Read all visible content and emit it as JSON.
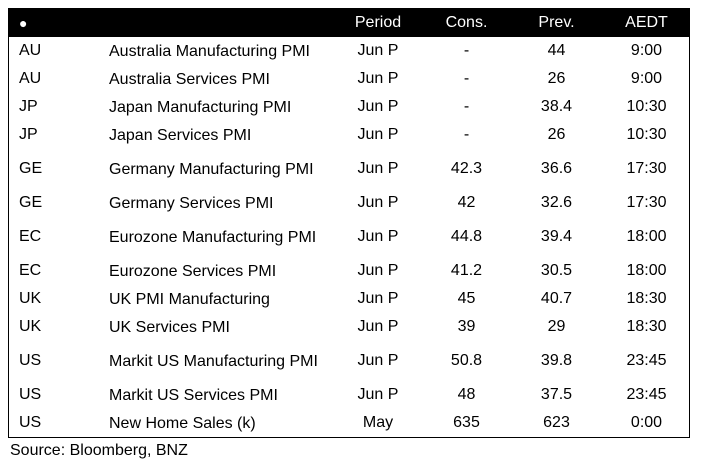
{
  "table": {
    "header_bullet": "●",
    "columns": {
      "period": "Period",
      "cons": "Cons.",
      "prev": "Prev.",
      "aedt": "AEDT"
    },
    "rows": [
      {
        "country": "AU",
        "event": "Australia Manufacturing PMI",
        "period": "Jun P",
        "cons": "-",
        "prev": "44",
        "aedt": "9:00"
      },
      {
        "country": "AU",
        "event": "Australia Services PMI",
        "period": "Jun P",
        "cons": "-",
        "prev": "26",
        "aedt": "9:00"
      },
      {
        "country": "JP",
        "event": "Japan Manufacturing PMI",
        "period": "Jun P",
        "cons": "-",
        "prev": "38.4",
        "aedt": "10:30"
      },
      {
        "country": "JP",
        "event": "Japan Services PMI",
        "period": "Jun P",
        "cons": "-",
        "prev": "26",
        "aedt": "10:30"
      },
      {
        "country": "GE",
        "event": "Germany Manufacturing PMI",
        "period": "Jun P",
        "cons": "42.3",
        "prev": "36.6",
        "aedt": "17:30"
      },
      {
        "country": "GE",
        "event": "Germany Services PMI",
        "period": "Jun P",
        "cons": "42",
        "prev": "32.6",
        "aedt": "17:30"
      },
      {
        "country": "EC",
        "event": "Eurozone Manufacturing PMI",
        "period": "Jun P",
        "cons": "44.8",
        "prev": "39.4",
        "aedt": "18:00"
      },
      {
        "country": "EC",
        "event": "Eurozone Services PMI",
        "period": "Jun P",
        "cons": "41.2",
        "prev": "30.5",
        "aedt": "18:00"
      },
      {
        "country": "UK",
        "event": "UK PMI Manufacturing",
        "period": "Jun P",
        "cons": "45",
        "prev": "40.7",
        "aedt": "18:30"
      },
      {
        "country": "UK",
        "event": "UK Services PMI",
        "period": "Jun P",
        "cons": "39",
        "prev": "29",
        "aedt": "18:30"
      },
      {
        "country": "US",
        "event": "Markit US Manufacturing PMI",
        "period": "Jun P",
        "cons": "50.8",
        "prev": "39.8",
        "aedt": "23:45"
      },
      {
        "country": "US",
        "event": "Markit US Services PMI",
        "period": "Jun P",
        "cons": "48",
        "prev": "37.5",
        "aedt": "23:45"
      },
      {
        "country": "US",
        "event": "New Home Sales (k)",
        "period": "May",
        "cons": "635",
        "prev": "623",
        "aedt": "0:00"
      }
    ]
  },
  "footer": {
    "source": "Source: Bloomberg, BNZ"
  }
}
